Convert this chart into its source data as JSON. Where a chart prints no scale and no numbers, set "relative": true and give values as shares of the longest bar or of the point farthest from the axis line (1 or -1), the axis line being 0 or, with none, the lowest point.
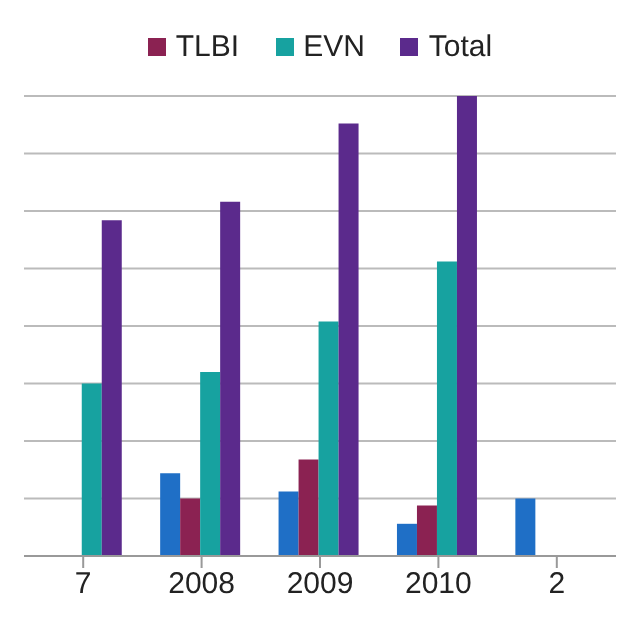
{
  "chart_data": {
    "type": "bar",
    "relative": true,
    "categories": [
      "7",
      "2008",
      "2009",
      "2010",
      "2"
    ],
    "series": [
      {
        "color": "#1f6fc6",
        "values": [
          null,
          0.18,
          0.14,
          0.07,
          0.125
        ]
      },
      {
        "name": "TLBI",
        "color": "#8b2252",
        "values": [
          null,
          0.125,
          0.21,
          0.11,
          null
        ]
      },
      {
        "name": "EVN",
        "color": "#17a2a0",
        "values": [
          0.375,
          0.4,
          0.51,
          0.64,
          null
        ]
      },
      {
        "name": "Total",
        "color": "#5b2a8c",
        "values": [
          0.73,
          0.77,
          0.94,
          1,
          null
        ]
      }
    ],
    "grid": "y",
    "legend": "top"
  }
}
